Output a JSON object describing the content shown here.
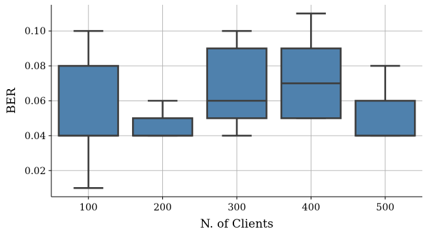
{
  "chart_data": {
    "type": "box",
    "xlabel": "N. of Clients",
    "ylabel": "BER",
    "ylim": [
      0.005,
      0.115
    ],
    "yticks": [
      0.02,
      0.04,
      0.06,
      0.08,
      0.1
    ],
    "ytick_labels": [
      "0.02",
      "0.04",
      "0.06",
      "0.08",
      "0.10"
    ],
    "grid": true,
    "categories": [
      "100",
      "200",
      "300",
      "400",
      "500"
    ],
    "boxes": [
      {
        "category": "100",
        "whisker_low": 0.01,
        "q1": 0.04,
        "median": 0.04,
        "q3": 0.08,
        "whisker_high": 0.1
      },
      {
        "category": "200",
        "whisker_low": 0.04,
        "q1": 0.04,
        "median": 0.04,
        "q3": 0.05,
        "whisker_high": 0.06
      },
      {
        "category": "300",
        "whisker_low": 0.04,
        "q1": 0.05,
        "median": 0.06,
        "q3": 0.09,
        "whisker_high": 0.1
      },
      {
        "category": "400",
        "whisker_low": 0.05,
        "q1": 0.05,
        "median": 0.07,
        "q3": 0.09,
        "whisker_high": 0.11
      },
      {
        "category": "500",
        "whisker_low": 0.04,
        "q1": 0.04,
        "median": 0.04,
        "q3": 0.06,
        "whisker_high": 0.08
      }
    ],
    "colors": {
      "box_fill": "#4f81ad",
      "box_edge": "#3d3d3d",
      "grid": "#b0b0b0",
      "axis": "#000000"
    }
  }
}
